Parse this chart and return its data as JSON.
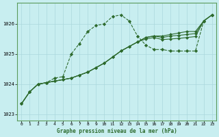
{
  "background_color": "#c8eef0",
  "grid_color": "#aad8dc",
  "line_color": "#2d6a2d",
  "title": "Graphe pression niveau de la mer (hPa)",
  "xlim": [
    -0.5,
    23.5
  ],
  "ylim": [
    1022.8,
    1026.7
  ],
  "yticks": [
    1023,
    1024,
    1025,
    1026
  ],
  "xticks": [
    0,
    1,
    2,
    3,
    4,
    5,
    6,
    7,
    8,
    9,
    10,
    11,
    12,
    13,
    14,
    15,
    16,
    17,
    18,
    19,
    20,
    21,
    22,
    23
  ],
  "series": [
    [
      1023.35,
      1023.75,
      1024.0,
      1024.05,
      1024.2,
      1024.25,
      1025.0,
      1025.35,
      1025.75,
      1025.95,
      1026.0,
      1026.25,
      1026.3,
      1026.1,
      1025.6,
      1025.3,
      1025.15,
      1025.15,
      1025.1,
      1025.1,
      1025.1,
      1025.1,
      1026.1,
      1026.3
    ],
    [
      1023.35,
      1023.75,
      1024.0,
      1024.05,
      1024.1,
      1024.15,
      1024.2,
      1024.3,
      1024.4,
      1024.55,
      1024.7,
      1024.9,
      1025.1,
      1025.25,
      1025.4,
      1025.55,
      1025.6,
      1025.6,
      1025.65,
      1025.7,
      1025.75,
      1025.75,
      1026.1,
      1026.3
    ],
    [
      1023.35,
      1023.75,
      1024.0,
      1024.05,
      1024.1,
      1024.15,
      1024.2,
      1024.3,
      1024.4,
      1024.55,
      1024.7,
      1024.9,
      1025.1,
      1025.25,
      1025.4,
      1025.55,
      1025.6,
      1025.55,
      1025.6,
      1025.62,
      1025.65,
      1025.68,
      1026.1,
      1026.3
    ],
    [
      1023.35,
      1023.75,
      1024.0,
      1024.05,
      1024.1,
      1024.15,
      1024.2,
      1024.3,
      1024.4,
      1024.55,
      1024.7,
      1024.9,
      1025.1,
      1025.25,
      1025.4,
      1025.5,
      1025.55,
      1025.48,
      1025.5,
      1025.52,
      1025.55,
      1025.58,
      1026.1,
      1026.3
    ]
  ],
  "line_styles": [
    "-",
    "-",
    "-",
    "-"
  ],
  "marker_only_series0": true
}
